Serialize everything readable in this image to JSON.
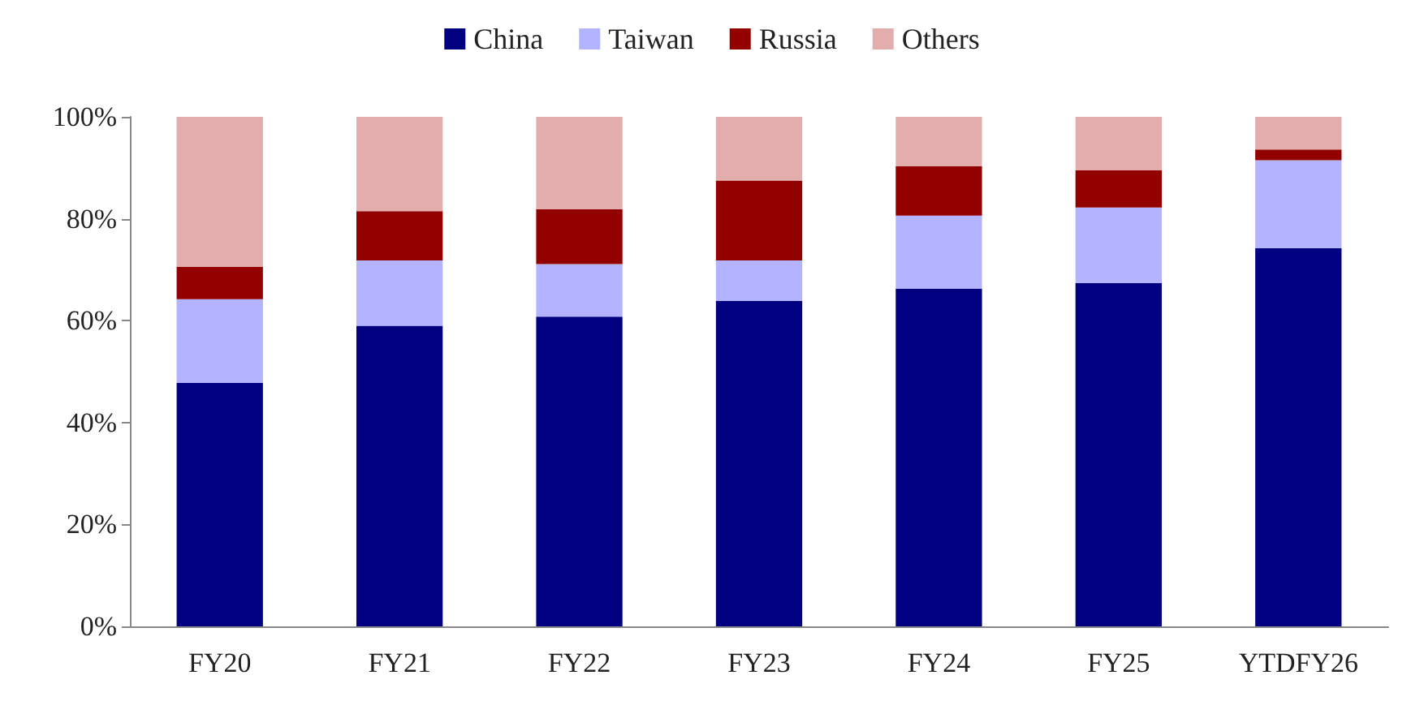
{
  "chart_data": {
    "type": "bar",
    "stacked": true,
    "categories": [
      "FY20",
      "FY21",
      "FY22",
      "FY23",
      "FY24",
      "FY25",
      "YTDFY26"
    ],
    "series": [
      {
        "name": "China",
        "color": "#000080",
        "values": [
          47.8,
          59.0,
          60.8,
          63.9,
          66.3,
          67.4,
          74.2
        ]
      },
      {
        "name": "Taiwan",
        "color": "#b3b3ff",
        "values": [
          16.4,
          12.8,
          10.3,
          7.9,
          14.3,
          14.8,
          17.3
        ]
      },
      {
        "name": "Russia",
        "color": "#920000",
        "values": [
          6.4,
          9.7,
          10.8,
          15.7,
          9.7,
          7.3,
          2.1
        ]
      },
      {
        "name": "Others",
        "color": "#e3adad",
        "values": [
          29.4,
          18.5,
          18.1,
          12.5,
          9.7,
          10.5,
          6.4
        ]
      }
    ],
    "ylim": [
      0,
      100
    ],
    "yticks": [
      {
        "value": 0,
        "label": "0%"
      },
      {
        "value": 20,
        "label": "20%"
      },
      {
        "value": 40,
        "label": "40%"
      },
      {
        "value": 60,
        "label": "60%"
      },
      {
        "value": 80,
        "label": "80%"
      },
      {
        "value": 100,
        "label": "100%"
      }
    ],
    "grid": false,
    "legend": "top"
  }
}
